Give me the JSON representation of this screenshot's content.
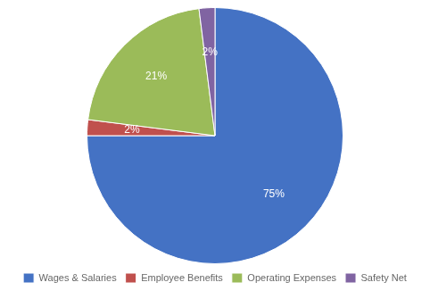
{
  "chart_data": {
    "type": "pie",
    "categories": [
      "Wages & Salaries",
      "Employee Benefits",
      "Operating Expenses",
      "Safety Net"
    ],
    "values": [
      75,
      2,
      21,
      2
    ],
    "value_labels": [
      "75%",
      "2%",
      "21%",
      "2%"
    ],
    "colors": [
      "#4472c4",
      "#c0504d",
      "#9bbb59",
      "#8064a2"
    ],
    "data_labels": true,
    "legend": "bottom"
  }
}
